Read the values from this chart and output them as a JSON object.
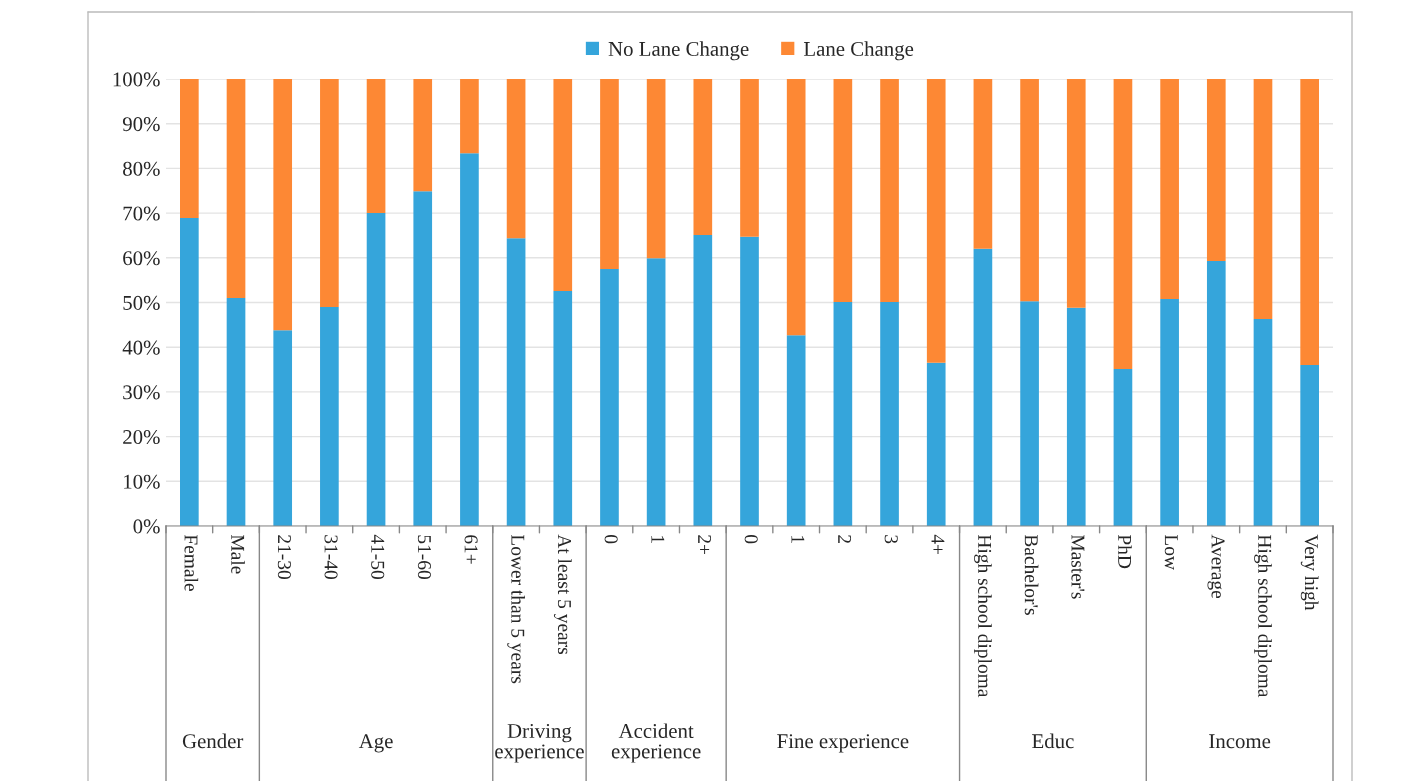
{
  "chart_data": {
    "type": "bar",
    "stacked": true,
    "categories": [
      "Female",
      "Male",
      "21-30",
      "31-40",
      "41-50",
      "51-60",
      "61+",
      "Lower than 5 years",
      "At least 5 years",
      "0",
      "1",
      "2+",
      "0",
      "1",
      "2",
      "3",
      "4+",
      "High school diploma",
      "Bachelor's",
      "Master's",
      "PhD",
      "Low",
      "Average",
      "High school diploma",
      "Very high"
    ],
    "series": [
      {
        "name": "No Lane Change",
        "color": "#35a5db",
        "values": [
          68.9,
          51.0,
          43.8,
          49.0,
          70.0,
          74.9,
          83.4,
          64.4,
          52.6,
          57.5,
          59.9,
          65.1,
          64.7,
          42.7,
          50.1,
          50.1,
          36.5,
          62.0,
          50.3,
          48.8,
          35.1,
          50.8,
          59.3,
          46.3,
          36.0
        ]
      },
      {
        "name": "Lane Change",
        "color": "#fd8834",
        "values": [
          31.1,
          49.0,
          56.2,
          51.0,
          30.0,
          25.1,
          16.6,
          35.6,
          47.4,
          42.5,
          40.1,
          34.9,
          35.3,
          57.3,
          49.9,
          49.9,
          63.5,
          38.0,
          49.7,
          51.2,
          64.9,
          49.2,
          40.7,
          53.7,
          64.0
        ]
      }
    ],
    "ylim": [
      0,
      100
    ],
    "yticks": [
      {
        "value": 0,
        "label": "0%"
      },
      {
        "value": 10,
        "label": "10%"
      },
      {
        "value": 20,
        "label": "20%"
      },
      {
        "value": 30,
        "label": "30%"
      },
      {
        "value": 40,
        "label": "40%"
      },
      {
        "value": 50,
        "label": "50%"
      },
      {
        "value": 60,
        "label": "60%"
      },
      {
        "value": 70,
        "label": "70%"
      },
      {
        "value": 80,
        "label": "80%"
      },
      {
        "value": 90,
        "label": "90%"
      },
      {
        "value": 100,
        "label": "100%"
      }
    ],
    "grid": "y",
    "legend": "top",
    "annotations": [
      "Gender",
      "Age",
      "Driving\nexperience",
      "Accident\nexperience",
      "Fine experience",
      "Educ",
      "Income"
    ]
  }
}
